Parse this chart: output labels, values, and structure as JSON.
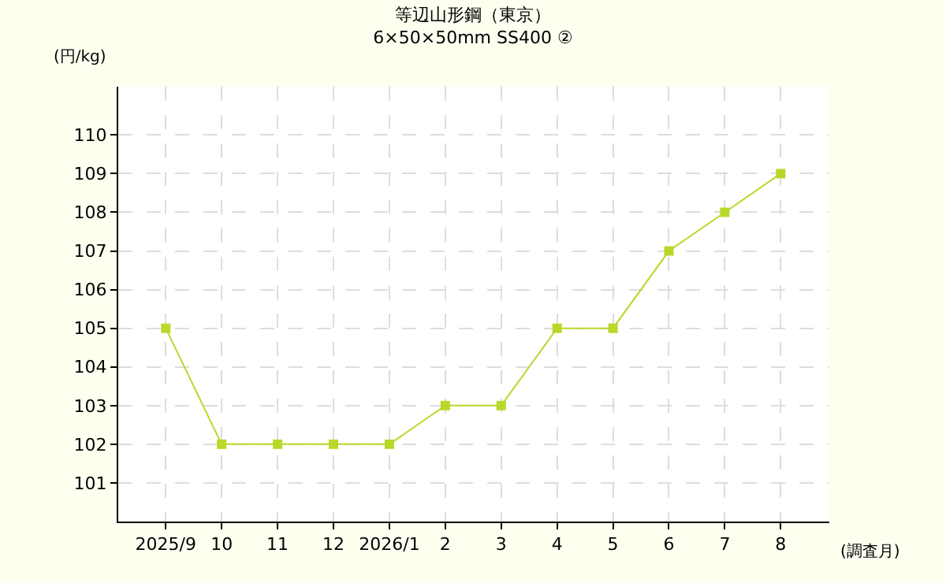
{
  "chart_data": {
    "type": "line",
    "title": "等辺山形鋼（東京）",
    "subtitle": "6×50×50mm SS400 ②",
    "ylabel": "(円/kg)",
    "xlabel": "(調査月)",
    "categories": [
      "2025/9",
      "10",
      "11",
      "12",
      "2026/1",
      "2",
      "3",
      "4",
      "5",
      "6",
      "7",
      "8"
    ],
    "series": [
      {
        "color": "#b8d82a",
        "values": [
          105,
          102,
          102,
          102,
          102,
          103,
          103,
          105,
          105,
          107,
          108,
          109
        ]
      }
    ],
    "ylim": [
      100,
      111.25
    ],
    "yticks": [
      101,
      102,
      103,
      104,
      105,
      106,
      107,
      108,
      109,
      110
    ],
    "grid": true,
    "marker": "square",
    "line_style": "solid"
  }
}
